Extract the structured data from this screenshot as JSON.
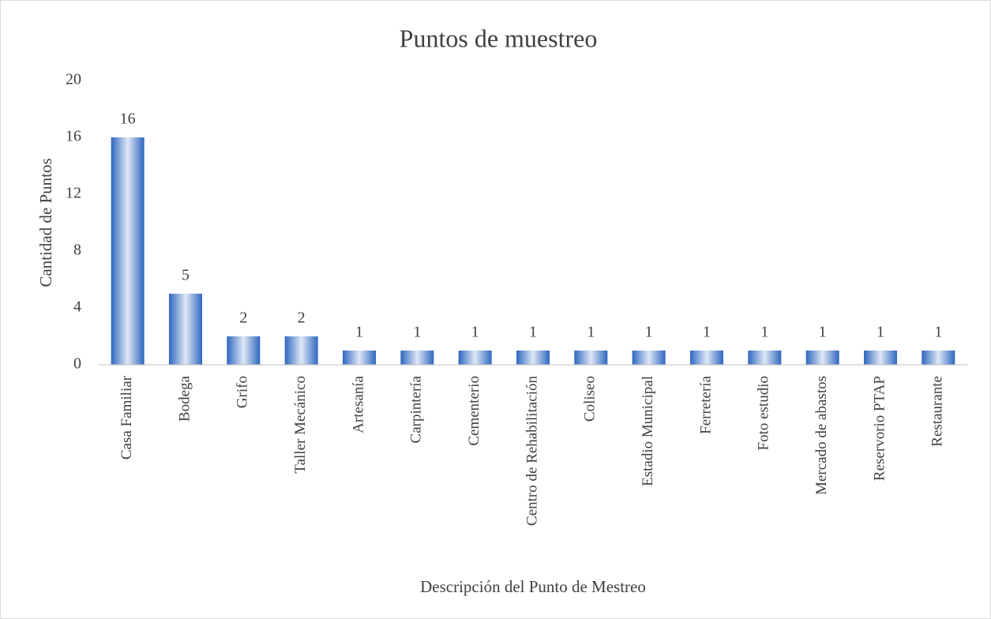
{
  "chart_data": {
    "type": "bar",
    "title": "Puntos de muestreo",
    "x_label": "Descripción del Punto de Mestreo",
    "y_label": "Cantidad de Puntos",
    "categories": [
      "Casa Familiar",
      "Bodega",
      "Grifo",
      "Taller Mecánico",
      "Artesanía",
      "Carpintería",
      "Cementerio",
      "Centro de Rehabilitación",
      "Coliseo",
      "Estadio Municipal",
      "Ferretería",
      "Foto estudio",
      "Mercado de abastos",
      "Reservorio PTAP",
      "Restaurante"
    ],
    "values": [
      16,
      5,
      2,
      2,
      1,
      1,
      1,
      1,
      1,
      1,
      1,
      1,
      1,
      1,
      1
    ],
    "color": "#2e67c0",
    "ylim": [
      0,
      20
    ],
    "yticks": [
      0,
      4,
      8,
      12,
      16,
      20
    ],
    "grid": false
  }
}
